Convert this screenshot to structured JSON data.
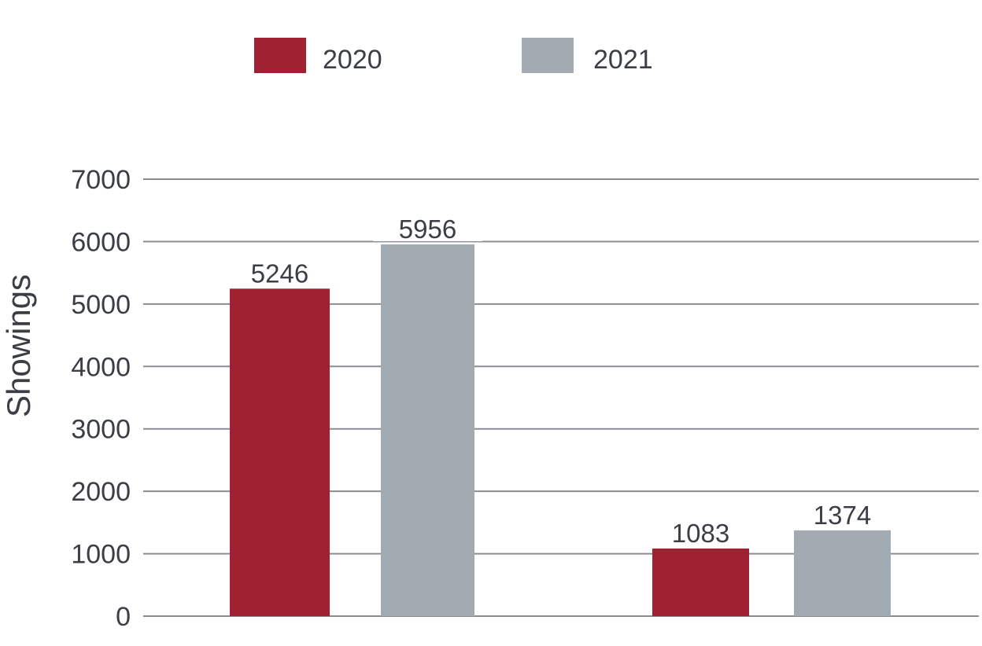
{
  "chart_data": {
    "type": "bar",
    "title": "",
    "xlabel": "",
    "ylabel": "Showings",
    "categories": [
      "",
      ""
    ],
    "series": [
      {
        "name": "2020",
        "color": "#a02232",
        "values": [
          5246,
          1083
        ],
        "labels": [
          "5246",
          "1083"
        ]
      },
      {
        "name": "2021",
        "color": "#a2abb1",
        "values": [
          5956,
          1374
        ],
        "labels": [
          "5956",
          "1374"
        ]
      }
    ],
    "ylim": [
      0,
      7000
    ],
    "yticks": [
      0,
      1000,
      2000,
      3000,
      4000,
      5000,
      6000,
      7000
    ],
    "grid": true,
    "legend": "top"
  }
}
